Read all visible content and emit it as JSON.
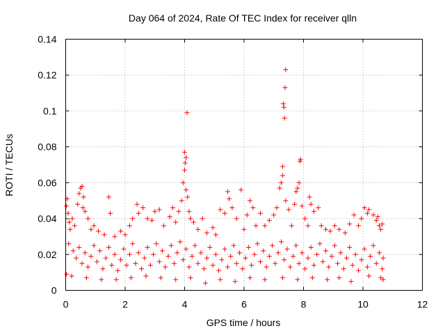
{
  "chart_data": {
    "type": "scatter",
    "title": "Day 064 of 2024, Rate Of TEC Index for receiver qlln",
    "xlabel": "GPS time / hours",
    "ylabel": "ROTI / TECUs",
    "xlim": [
      0,
      12
    ],
    "ylim": [
      0,
      0.14
    ],
    "x_ticks": [
      0,
      2,
      4,
      6,
      8,
      10,
      12
    ],
    "x_tick_labels": [
      "0",
      "2",
      "4",
      "6",
      "8",
      "10",
      "12"
    ],
    "y_ticks": [
      0,
      0.02,
      0.04,
      0.06,
      0.08,
      0.1,
      0.12,
      0.14
    ],
    "y_tick_labels": [
      "0",
      "0.02",
      "0.04",
      "0.06",
      "0.08",
      "0.1",
      "0.12",
      "0.14"
    ],
    "grid": true,
    "marker": "+",
    "color": "#ff0000",
    "series": [
      {
        "name": "ROTI",
        "points": [
          [
            0.02,
            0.047
          ],
          [
            0.05,
            0.051
          ],
          [
            0.08,
            0.043
          ],
          [
            0.12,
            0.038
          ],
          [
            0.15,
            0.034
          ],
          [
            0.22,
            0.04
          ],
          [
            0.3,
            0.036
          ],
          [
            0.4,
            0.048
          ],
          [
            0.45,
            0.054
          ],
          [
            0.5,
            0.057
          ],
          [
            0.55,
            0.058
          ],
          [
            0.6,
            0.052
          ],
          [
            0.58,
            0.046
          ],
          [
            0.65,
            0.044
          ],
          [
            0.75,
            0.04
          ],
          [
            0.85,
            0.034
          ],
          [
            0.95,
            0.036
          ],
          [
            1.1,
            0.033
          ],
          [
            1.3,
            0.031
          ],
          [
            1.45,
            0.052
          ],
          [
            1.5,
            0.043
          ],
          [
            1.65,
            0.03
          ],
          [
            1.85,
            0.033
          ],
          [
            2.0,
            0.031
          ],
          [
            2.15,
            0.036
          ],
          [
            2.25,
            0.04
          ],
          [
            2.4,
            0.048
          ],
          [
            2.45,
            0.043
          ],
          [
            2.6,
            0.046
          ],
          [
            2.75,
            0.04
          ],
          [
            2.9,
            0.039
          ],
          [
            3.0,
            0.044
          ],
          [
            3.15,
            0.045
          ],
          [
            3.3,
            0.036
          ],
          [
            3.5,
            0.041
          ],
          [
            3.6,
            0.046
          ],
          [
            3.7,
            0.038
          ],
          [
            3.8,
            0.044
          ],
          [
            3.9,
            0.05
          ],
          [
            3.95,
            0.06
          ],
          [
            4.0,
            0.067
          ],
          [
            4.0,
            0.077
          ],
          [
            4.02,
            0.071
          ],
          [
            4.05,
            0.074
          ],
          [
            4.08,
            0.099
          ],
          [
            4.05,
            0.056
          ],
          [
            4.1,
            0.052
          ],
          [
            4.15,
            0.044
          ],
          [
            4.2,
            0.04
          ],
          [
            4.3,
            0.038
          ],
          [
            4.45,
            0.034
          ],
          [
            4.6,
            0.04
          ],
          [
            4.75,
            0.032
          ],
          [
            4.95,
            0.035
          ],
          [
            5.05,
            0.031
          ],
          [
            5.2,
            0.045
          ],
          [
            5.35,
            0.043
          ],
          [
            5.45,
            0.055
          ],
          [
            5.5,
            0.051
          ],
          [
            5.6,
            0.046
          ],
          [
            5.75,
            0.04
          ],
          [
            5.9,
            0.056
          ],
          [
            6.0,
            0.034
          ],
          [
            6.1,
            0.042
          ],
          [
            6.2,
            0.05
          ],
          [
            6.3,
            0.046
          ],
          [
            6.4,
            0.036
          ],
          [
            6.55,
            0.043
          ],
          [
            6.7,
            0.036
          ],
          [
            6.85,
            0.039
          ],
          [
            7.0,
            0.042
          ],
          [
            7.1,
            0.046
          ],
          [
            7.2,
            0.057
          ],
          [
            7.25,
            0.06
          ],
          [
            7.3,
            0.064
          ],
          [
            7.3,
            0.069
          ],
          [
            7.32,
            0.104
          ],
          [
            7.34,
            0.102
          ],
          [
            7.36,
            0.096
          ],
          [
            7.38,
            0.113
          ],
          [
            7.4,
            0.123
          ],
          [
            7.4,
            0.05
          ],
          [
            7.5,
            0.045
          ],
          [
            7.6,
            0.036
          ],
          [
            7.7,
            0.048
          ],
          [
            7.75,
            0.055
          ],
          [
            7.8,
            0.057
          ],
          [
            7.85,
            0.06
          ],
          [
            7.88,
            0.072
          ],
          [
            7.9,
            0.073
          ],
          [
            7.95,
            0.047
          ],
          [
            8.05,
            0.04
          ],
          [
            8.15,
            0.036
          ],
          [
            8.2,
            0.052
          ],
          [
            8.25,
            0.048
          ],
          [
            8.35,
            0.044
          ],
          [
            8.5,
            0.046
          ],
          [
            8.6,
            0.036
          ],
          [
            8.75,
            0.034
          ],
          [
            8.9,
            0.033
          ],
          [
            9.05,
            0.036
          ],
          [
            9.2,
            0.034
          ],
          [
            9.4,
            0.032
          ],
          [
            9.55,
            0.037
          ],
          [
            9.7,
            0.042
          ],
          [
            9.85,
            0.036
          ],
          [
            9.95,
            0.04
          ],
          [
            10.05,
            0.046
          ],
          [
            10.15,
            0.043
          ],
          [
            10.2,
            0.045
          ],
          [
            10.35,
            0.042
          ],
          [
            10.45,
            0.039
          ],
          [
            10.5,
            0.041
          ],
          [
            10.55,
            0.036
          ],
          [
            10.6,
            0.034
          ],
          [
            10.65,
            0.037
          ],
          [
            10.68,
            0.006
          ],
          [
            10.6,
            0.007
          ],
          [
            10.2,
            0.008
          ],
          [
            9.6,
            0.005
          ],
          [
            9.2,
            0.007
          ],
          [
            8.8,
            0.006
          ],
          [
            8.3,
            0.007
          ],
          [
            7.8,
            0.006
          ],
          [
            7.3,
            0.007
          ],
          [
            6.7,
            0.006
          ],
          [
            6.2,
            0.007
          ],
          [
            5.7,
            0.005
          ],
          [
            5.2,
            0.006
          ],
          [
            4.7,
            0.004
          ],
          [
            4.2,
            0.007
          ],
          [
            3.7,
            0.006
          ],
          [
            3.2,
            0.007
          ],
          [
            2.7,
            0.008
          ],
          [
            2.2,
            0.007
          ],
          [
            1.7,
            0.006
          ],
          [
            1.2,
            0.006
          ],
          [
            0.7,
            0.007
          ],
          [
            0.2,
            0.008
          ],
          [
            0.03,
            0.009
          ],
          [
            0.1,
            0.026
          ],
          [
            0.25,
            0.022
          ],
          [
            0.35,
            0.018
          ],
          [
            0.45,
            0.024
          ],
          [
            0.55,
            0.015
          ],
          [
            0.65,
            0.021
          ],
          [
            0.75,
            0.013
          ],
          [
            0.85,
            0.019
          ],
          [
            0.95,
            0.025
          ],
          [
            1.05,
            0.016
          ],
          [
            1.15,
            0.022
          ],
          [
            1.25,
            0.012
          ],
          [
            1.35,
            0.018
          ],
          [
            1.45,
            0.024
          ],
          [
            1.55,
            0.014
          ],
          [
            1.65,
            0.02
          ],
          [
            1.75,
            0.011
          ],
          [
            1.85,
            0.017
          ],
          [
            1.95,
            0.023
          ],
          [
            2.05,
            0.014
          ],
          [
            2.15,
            0.02
          ],
          [
            2.25,
            0.026
          ],
          [
            2.35,
            0.015
          ],
          [
            2.45,
            0.021
          ],
          [
            2.55,
            0.012
          ],
          [
            2.65,
            0.018
          ],
          [
            2.75,
            0.024
          ],
          [
            2.85,
            0.014
          ],
          [
            2.95,
            0.02
          ],
          [
            3.05,
            0.026
          ],
          [
            3.15,
            0.016
          ],
          [
            3.25,
            0.022
          ],
          [
            3.35,
            0.013
          ],
          [
            3.45,
            0.019
          ],
          [
            3.55,
            0.025
          ],
          [
            3.65,
            0.015
          ],
          [
            3.75,
            0.021
          ],
          [
            3.85,
            0.027
          ],
          [
            3.95,
            0.017
          ],
          [
            4.05,
            0.023
          ],
          [
            4.15,
            0.013
          ],
          [
            4.25,
            0.019
          ],
          [
            4.35,
            0.025
          ],
          [
            4.45,
            0.015
          ],
          [
            4.55,
            0.021
          ],
          [
            4.65,
            0.012
          ],
          [
            4.75,
            0.018
          ],
          [
            4.85,
            0.024
          ],
          [
            4.95,
            0.014
          ],
          [
            5.05,
            0.02
          ],
          [
            5.15,
            0.011
          ],
          [
            5.25,
            0.017
          ],
          [
            5.35,
            0.023
          ],
          [
            5.45,
            0.013
          ],
          [
            5.55,
            0.019
          ],
          [
            5.65,
            0.025
          ],
          [
            5.75,
            0.015
          ],
          [
            5.85,
            0.021
          ],
          [
            5.95,
            0.012
          ],
          [
            6.05,
            0.018
          ],
          [
            6.15,
            0.024
          ],
          [
            6.25,
            0.014
          ],
          [
            6.35,
            0.02
          ],
          [
            6.45,
            0.026
          ],
          [
            6.55,
            0.016
          ],
          [
            6.65,
            0.022
          ],
          [
            6.75,
            0.013
          ],
          [
            6.85,
            0.019
          ],
          [
            6.95,
            0.025
          ],
          [
            7.05,
            0.015
          ],
          [
            7.15,
            0.021
          ],
          [
            7.25,
            0.027
          ],
          [
            7.35,
            0.017
          ],
          [
            7.45,
            0.023
          ],
          [
            7.55,
            0.013
          ],
          [
            7.65,
            0.019
          ],
          [
            7.75,
            0.025
          ],
          [
            7.85,
            0.015
          ],
          [
            7.95,
            0.021
          ],
          [
            8.05,
            0.012
          ],
          [
            8.15,
            0.018
          ],
          [
            8.25,
            0.024
          ],
          [
            8.35,
            0.014
          ],
          [
            8.45,
            0.02
          ],
          [
            8.55,
            0.026
          ],
          [
            8.65,
            0.016
          ],
          [
            8.75,
            0.022
          ],
          [
            8.85,
            0.013
          ],
          [
            8.95,
            0.019
          ],
          [
            9.05,
            0.025
          ],
          [
            9.15,
            0.015
          ],
          [
            9.25,
            0.021
          ],
          [
            9.35,
            0.012
          ],
          [
            9.45,
            0.018
          ],
          [
            9.55,
            0.024
          ],
          [
            9.65,
            0.014
          ],
          [
            9.75,
            0.02
          ],
          [
            9.85,
            0.011
          ],
          [
            9.95,
            0.017
          ],
          [
            10.05,
            0.023
          ],
          [
            10.15,
            0.013
          ],
          [
            10.25,
            0.019
          ],
          [
            10.35,
            0.025
          ],
          [
            10.45,
            0.015
          ],
          [
            10.55,
            0.021
          ],
          [
            10.65,
            0.012
          ],
          [
            10.68,
            0.018
          ]
        ]
      }
    ]
  }
}
